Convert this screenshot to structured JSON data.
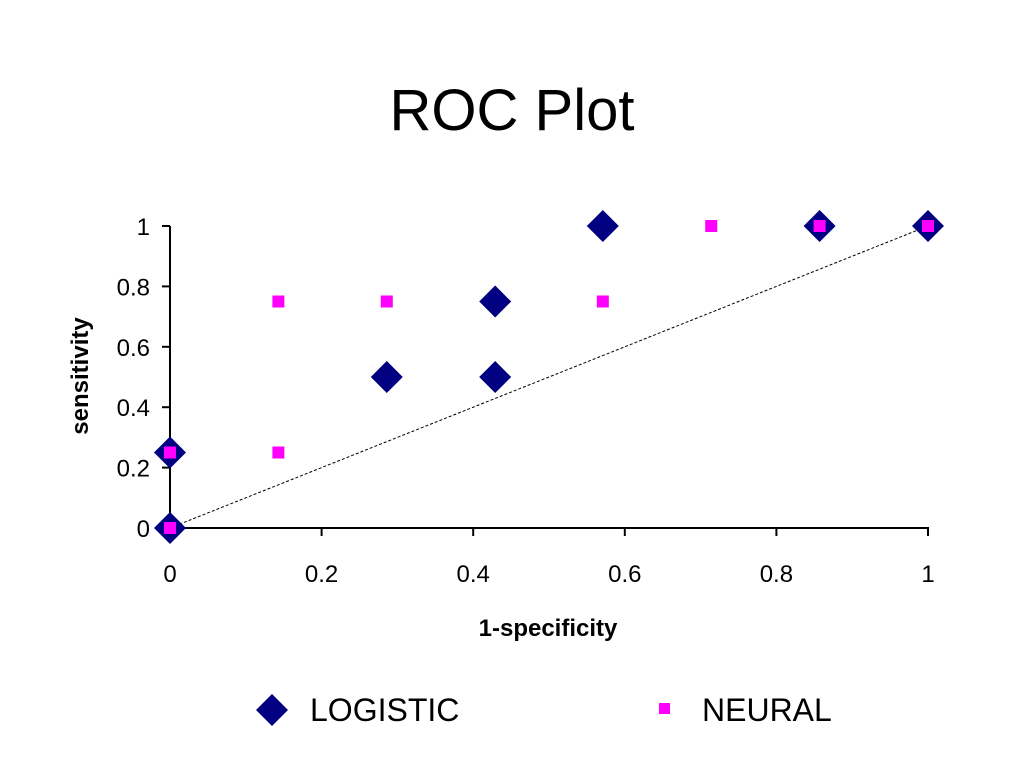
{
  "chart_data": {
    "type": "scatter",
    "title": "ROC Plot",
    "xlabel": "1-specificity",
    "ylabel": "sensitivity",
    "xlim": [
      0,
      1
    ],
    "ylim": [
      0,
      1
    ],
    "x_ticks": [
      "0",
      "0.2",
      "0.4",
      "0.6",
      "0.8",
      "1"
    ],
    "y_ticks": [
      "0",
      "0.2",
      "0.4",
      "0.6",
      "0.8",
      "1"
    ],
    "grid": false,
    "legend_position": "bottom",
    "reference_line": {
      "from": [
        0,
        0
      ],
      "to": [
        1,
        1
      ],
      "style": "dashed"
    },
    "series": [
      {
        "name": "LOGISTIC",
        "marker": "diamond",
        "color": "#000080",
        "points": [
          [
            0,
            0
          ],
          [
            0,
            0.25
          ],
          [
            0.286,
            0.5
          ],
          [
            0.429,
            0.5
          ],
          [
            0.429,
            0.75
          ],
          [
            0.571,
            1.0
          ],
          [
            0.857,
            1.0
          ],
          [
            1.0,
            1.0
          ]
        ]
      },
      {
        "name": "NEURAL",
        "marker": "square",
        "color": "#ff00ff",
        "points": [
          [
            0,
            0
          ],
          [
            0,
            0.25
          ],
          [
            0.143,
            0.25
          ],
          [
            0.143,
            0.75
          ],
          [
            0.286,
            0.75
          ],
          [
            0.571,
            0.75
          ],
          [
            0.714,
            1.0
          ],
          [
            0.857,
            1.0
          ],
          [
            1.0,
            1.0
          ]
        ]
      }
    ]
  }
}
